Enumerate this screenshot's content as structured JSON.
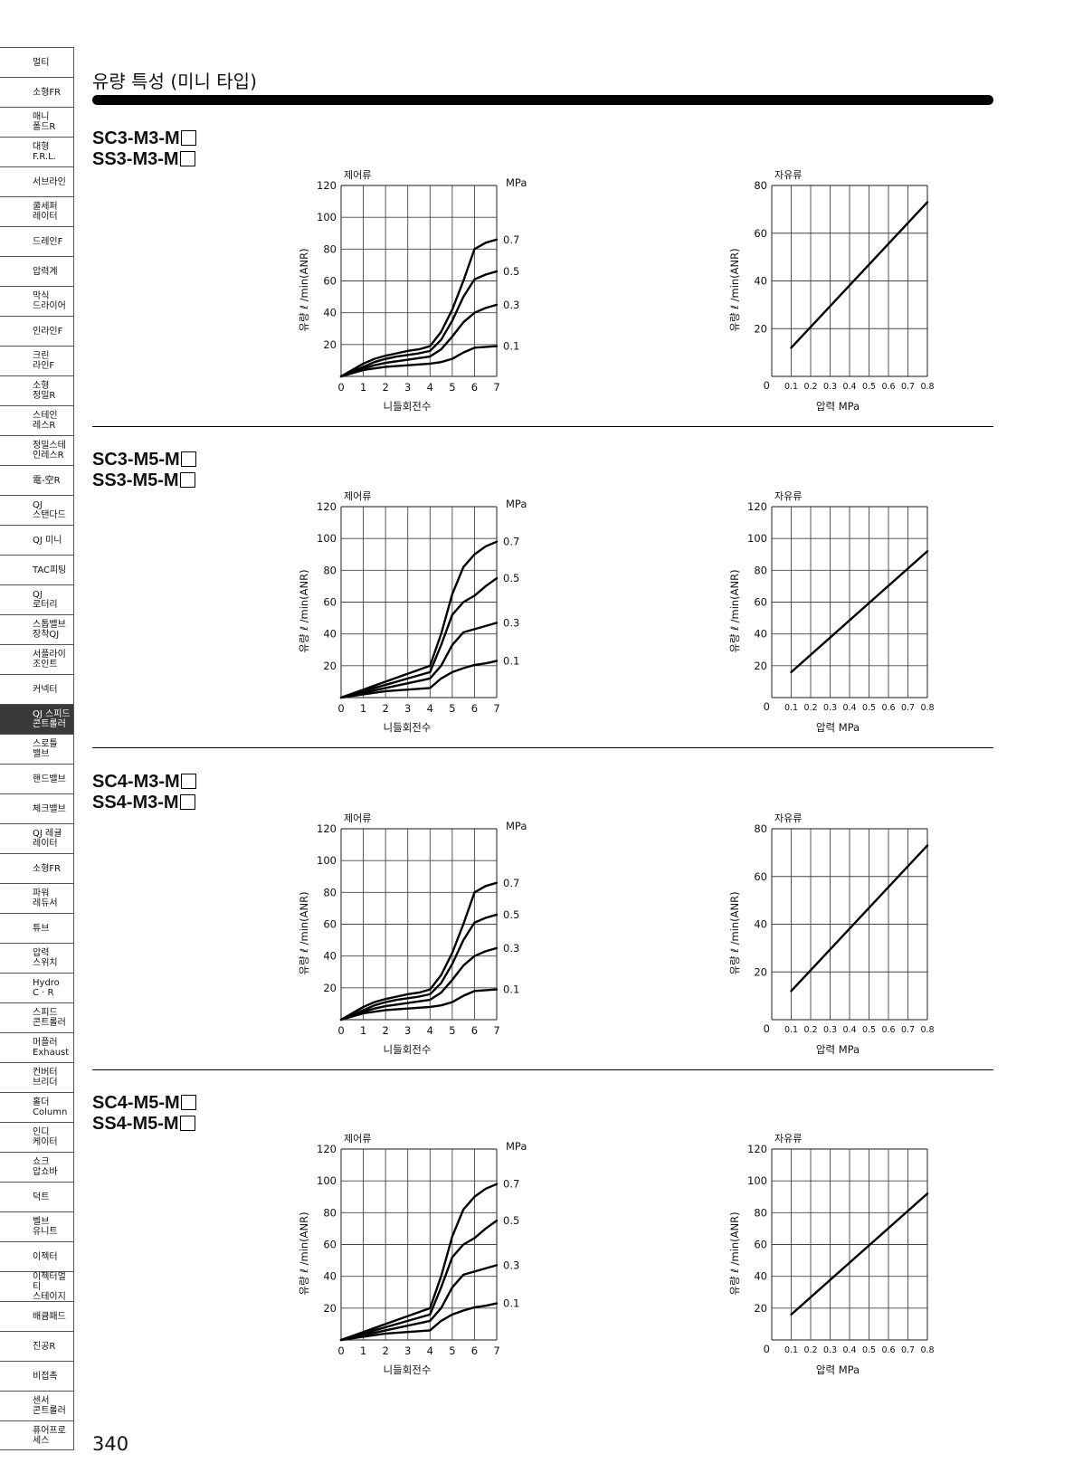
{
  "sidebar": {
    "tabs": [
      "멀티",
      "소형FR",
      "매니\n폴드R",
      "대형\nF.R.L.",
      "서브라인",
      "쿨세퍼\n레이터",
      "드레인F",
      "압력계",
      "막식\n드라이어",
      "인라인F",
      "크린\n라인F",
      "소형\n정밀R",
      "스테인\n레스R",
      "정밀스테\n인레스R",
      "電-空R",
      "QJ\n스탠다드",
      "QJ 미니",
      "TAC피팅",
      "QJ\n로터리",
      "스톱밸브\n장착QJ",
      "서플라이\n조인트",
      "커넥터",
      "QJ 스피드\n콘트롤러",
      "스로틀\n밸브",
      "핸드밸브",
      "체크밸브",
      "QJ 레귤\n레이터",
      "소형FR",
      "파워\n레듀서",
      "튜브",
      "압력\n스위치",
      "Hydro\nC · R",
      "스피드\n콘트롤러",
      "머플러\nExhaust",
      "컨버터\n브리더",
      "홀더\nColumn",
      "인디\n케이터",
      "쇼크\n압쇼바",
      "덕트",
      "벨브\n유니트",
      "이젝터",
      "이젝터멀티\n스테이지",
      "배큠패드",
      "진공R",
      "비접촉",
      "센서\n콘트롤러",
      "퓨어프로\n세스"
    ],
    "active_index": 22
  },
  "page_title": "유량 특성 (미니 타입)",
  "page_number": "340",
  "sections": [
    {
      "model_line1": "SC3-M3-M",
      "model_line2": "SS3-M3-M"
    },
    {
      "model_line1": "SC3-M5-M",
      "model_line2": "SS3-M5-M"
    },
    {
      "model_line1": "SC4-M3-M",
      "model_line2": "SS4-M3-M"
    },
    {
      "model_line1": "SC4-M5-M",
      "model_line2": "SS4-M5-M"
    }
  ],
  "chart_data": [
    {
      "type": "line",
      "title": "제어류",
      "xlabel": "니들회전수",
      "ylabel": "유량  ℓ /min(ANR)",
      "unit_label": "MPa",
      "xlim": [
        0,
        7
      ],
      "ylim": [
        0,
        120
      ],
      "x": [
        0,
        0.5,
        1,
        1.5,
        2,
        2.5,
        3,
        3.5,
        4,
        4.5,
        5,
        5.5,
        6,
        6.5,
        7
      ],
      "series": [
        {
          "name": "0.7",
          "values": [
            0,
            4,
            8,
            11,
            13,
            14.5,
            16,
            17,
            19,
            28,
            42,
            60,
            80,
            84,
            86
          ]
        },
        {
          "name": "0.5",
          "values": [
            0,
            3,
            6,
            9,
            11,
            12.5,
            13.5,
            14.5,
            16,
            23,
            35,
            50,
            61,
            64,
            66
          ]
        },
        {
          "name": "0.3",
          "values": [
            0,
            2.5,
            5,
            7,
            8.5,
            9.5,
            10.5,
            11.5,
            12.5,
            17,
            25,
            34,
            40,
            43,
            45
          ]
        },
        {
          "name": "0.1",
          "values": [
            0,
            2,
            4,
            5,
            6,
            6.5,
            7,
            7.5,
            8,
            9,
            11,
            15,
            18,
            18.5,
            19
          ]
        }
      ],
      "grid": true,
      "legend": "right"
    },
    {
      "type": "line",
      "title": "자유류",
      "xlabel": "압력 MPa",
      "ylabel": "유량  ℓ /min(ANR)",
      "xticks": [
        "0",
        "0.1",
        "0.2",
        "0.3",
        "0.4",
        "0.5",
        "0.6",
        "0.7",
        "0.8"
      ],
      "xlim": [
        0,
        0.8
      ],
      "ylim": [
        0,
        80
      ],
      "series": [
        {
          "x": [
            0.1,
            0.8
          ],
          "values": [
            12,
            73
          ]
        }
      ],
      "grid": true
    },
    {
      "type": "line",
      "title": "제어류",
      "xlabel": "니들회전수",
      "ylabel": "유량  ℓ /min(ANR)",
      "unit_label": "MPa",
      "xlim": [
        0,
        7
      ],
      "ylim": [
        0,
        120
      ],
      "x": [
        0,
        0.5,
        1,
        1.5,
        2,
        2.5,
        3,
        3.5,
        4,
        4.5,
        5,
        5.5,
        6,
        6.5,
        7
      ],
      "series": [
        {
          "name": "0.7",
          "values": [
            0,
            2.5,
            5,
            7.5,
            10,
            12.5,
            15,
            17.5,
            20,
            40,
            65,
            82,
            90,
            95,
            98
          ]
        },
        {
          "name": "0.5",
          "values": [
            0,
            2,
            4,
            6,
            8,
            10,
            12,
            14,
            16,
            33,
            52,
            60,
            64,
            70,
            75
          ]
        },
        {
          "name": "0.3",
          "values": [
            0,
            1.5,
            3,
            4.5,
            6,
            7.5,
            9,
            10.5,
            12,
            20,
            33,
            41,
            43,
            45,
            47
          ]
        },
        {
          "name": "0.1",
          "values": [
            0,
            1,
            2,
            3,
            4,
            4.5,
            5,
            5.5,
            6,
            12,
            16,
            18.5,
            20.5,
            21.5,
            23
          ]
        }
      ],
      "grid": true,
      "legend": "right"
    },
    {
      "type": "line",
      "title": "자유류",
      "xlabel": "압력 MPa",
      "ylabel": "유량  ℓ /min(ANR)",
      "xticks": [
        "0",
        "0.1",
        "0.2",
        "0.3",
        "0.4",
        "0.5",
        "0.6",
        "0.7",
        "0.8"
      ],
      "xlim": [
        0,
        0.8
      ],
      "ylim": [
        0,
        120
      ],
      "series": [
        {
          "x": [
            0.1,
            0.8
          ],
          "values": [
            16,
            92
          ]
        }
      ],
      "grid": true
    },
    {
      "type": "line",
      "title": "제어류",
      "xlabel": "니들회전수",
      "ylabel": "유량  ℓ /min(ANR)",
      "unit_label": "MPa",
      "xlim": [
        0,
        7
      ],
      "ylim": [
        0,
        120
      ],
      "x": [
        0,
        0.5,
        1,
        1.5,
        2,
        2.5,
        3,
        3.5,
        4,
        4.5,
        5,
        5.5,
        6,
        6.5,
        7
      ],
      "series": [
        {
          "name": "0.7",
          "values": [
            0,
            4,
            8,
            11,
            13,
            14.5,
            16,
            17,
            19,
            28,
            42,
            60,
            80,
            84,
            86
          ]
        },
        {
          "name": "0.5",
          "values": [
            0,
            3,
            6,
            9,
            11,
            12.5,
            13.5,
            14.5,
            16,
            23,
            35,
            50,
            61,
            64,
            66
          ]
        },
        {
          "name": "0.3",
          "values": [
            0,
            2.5,
            5,
            7,
            8.5,
            9.5,
            10.5,
            11.5,
            12.5,
            17,
            25,
            34,
            40,
            43,
            45
          ]
        },
        {
          "name": "0.1",
          "values": [
            0,
            2,
            4,
            5,
            6,
            6.5,
            7,
            7.5,
            8,
            9,
            11,
            15,
            18,
            18.5,
            19
          ]
        }
      ],
      "grid": true,
      "legend": "right"
    },
    {
      "type": "line",
      "title": "자유류",
      "xlabel": "압력 MPa",
      "ylabel": "유량  ℓ /min(ANR)",
      "xticks": [
        "0",
        "0.1",
        "0.2",
        "0.3",
        "0.4",
        "0.5",
        "0.6",
        "0.7",
        "0.8"
      ],
      "xlim": [
        0,
        0.8
      ],
      "ylim": [
        0,
        80
      ],
      "series": [
        {
          "x": [
            0.1,
            0.8
          ],
          "values": [
            12,
            73
          ]
        }
      ],
      "grid": true
    },
    {
      "type": "line",
      "title": "제어류",
      "xlabel": "니들회전수",
      "ylabel": "유량  ℓ /min(ANR)",
      "unit_label": "MPa",
      "xlim": [
        0,
        7
      ],
      "ylim": [
        0,
        120
      ],
      "x": [
        0,
        0.5,
        1,
        1.5,
        2,
        2.5,
        3,
        3.5,
        4,
        4.5,
        5,
        5.5,
        6,
        6.5,
        7
      ],
      "series": [
        {
          "name": "0.7",
          "values": [
            0,
            2.5,
            5,
            7.5,
            10,
            12.5,
            15,
            17.5,
            20,
            40,
            65,
            82,
            90,
            95,
            98
          ]
        },
        {
          "name": "0.5",
          "values": [
            0,
            2,
            4,
            6,
            8,
            10,
            12,
            14,
            16,
            33,
            52,
            60,
            64,
            70,
            75
          ]
        },
        {
          "name": "0.3",
          "values": [
            0,
            1.5,
            3,
            4.5,
            6,
            7.5,
            9,
            10.5,
            12,
            20,
            33,
            41,
            43,
            45,
            47
          ]
        },
        {
          "name": "0.1",
          "values": [
            0,
            1,
            2,
            3,
            4,
            4.5,
            5,
            5.5,
            6,
            12,
            16,
            18.5,
            20.5,
            21.5,
            23
          ]
        }
      ],
      "grid": true,
      "legend": "right"
    },
    {
      "type": "line",
      "title": "자유류",
      "xlabel": "압력 MPa",
      "ylabel": "유량  ℓ /min(ANR)",
      "xticks": [
        "0",
        "0.1",
        "0.2",
        "0.3",
        "0.4",
        "0.5",
        "0.6",
        "0.7",
        "0.8"
      ],
      "xlim": [
        0,
        0.8
      ],
      "ylim": [
        0,
        120
      ],
      "series": [
        {
          "x": [
            0.1,
            0.8
          ],
          "values": [
            16,
            92
          ]
        }
      ],
      "grid": true
    }
  ]
}
